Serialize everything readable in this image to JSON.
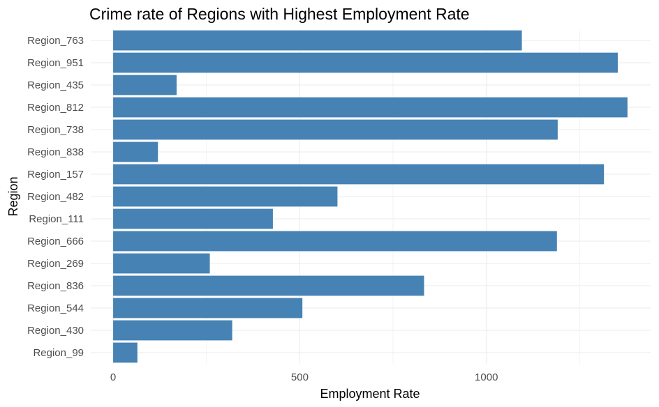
{
  "chart_data": {
    "type": "bar",
    "orientation": "horizontal",
    "title": "Crime rate of Regions with Highest Employment Rate",
    "xlabel": "Employment Rate",
    "ylabel": "Region",
    "categories": [
      "Region_763",
      "Region_951",
      "Region_435",
      "Region_812",
      "Region_738",
      "Region_838",
      "Region_157",
      "Region_482",
      "Region_111",
      "Region_666",
      "Region_269",
      "Region_836",
      "Region_544",
      "Region_430",
      "Region_99"
    ],
    "values": [
      1095,
      1352,
      170,
      1378,
      1191,
      120,
      1315,
      601,
      428,
      1189,
      259,
      833,
      507,
      319,
      65
    ],
    "xlim": [
      -60,
      1440
    ],
    "x_ticks": [
      0,
      500,
      1000
    ],
    "x_tick_labels": [
      "0",
      "500",
      "1000"
    ],
    "bar_color": "#4682b4",
    "grid": true,
    "legend": "none"
  }
}
